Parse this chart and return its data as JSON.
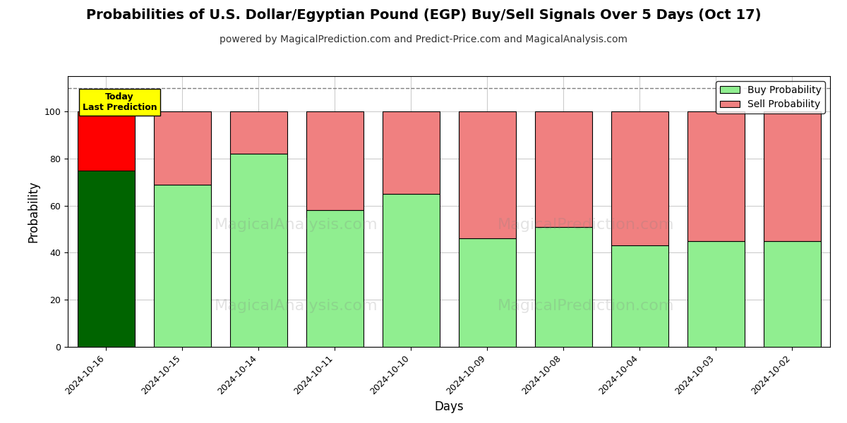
{
  "title": "Probabilities of U.S. Dollar/Egyptian Pound (EGP) Buy/Sell Signals Over 5 Days (Oct 17)",
  "subtitle": "powered by MagicalPrediction.com and Predict-Price.com and MagicalAnalysis.com",
  "xlabel": "Days",
  "ylabel": "Probability",
  "categories": [
    "2024-10-16",
    "2024-10-15",
    "2024-10-14",
    "2024-10-11",
    "2024-10-10",
    "2024-10-09",
    "2024-10-08",
    "2024-10-04",
    "2024-10-03",
    "2024-10-02"
  ],
  "buy_values": [
    75,
    69,
    82,
    58,
    65,
    46,
    51,
    43,
    45,
    45
  ],
  "sell_values": [
    25,
    31,
    18,
    42,
    35,
    54,
    49,
    57,
    55,
    55
  ],
  "today_bar_buy_color": "#006400",
  "today_bar_sell_color": "#FF0000",
  "other_bar_buy_color": "#90EE90",
  "other_bar_sell_color": "#F08080",
  "bar_edge_color": "#000000",
  "today_label_bg": "#FFFF00",
  "today_label_text": "Today\nLast Prediction",
  "legend_buy_label": "Buy Probability",
  "legend_sell_label": "Sell Probability",
  "ylim": [
    0,
    115
  ],
  "dashed_line_y": 110,
  "grid_color": "#cccccc",
  "title_fontsize": 14,
  "subtitle_fontsize": 10,
  "axis_label_fontsize": 12,
  "tick_label_fontsize": 9,
  "legend_fontsize": 10,
  "bar_width": 0.75
}
